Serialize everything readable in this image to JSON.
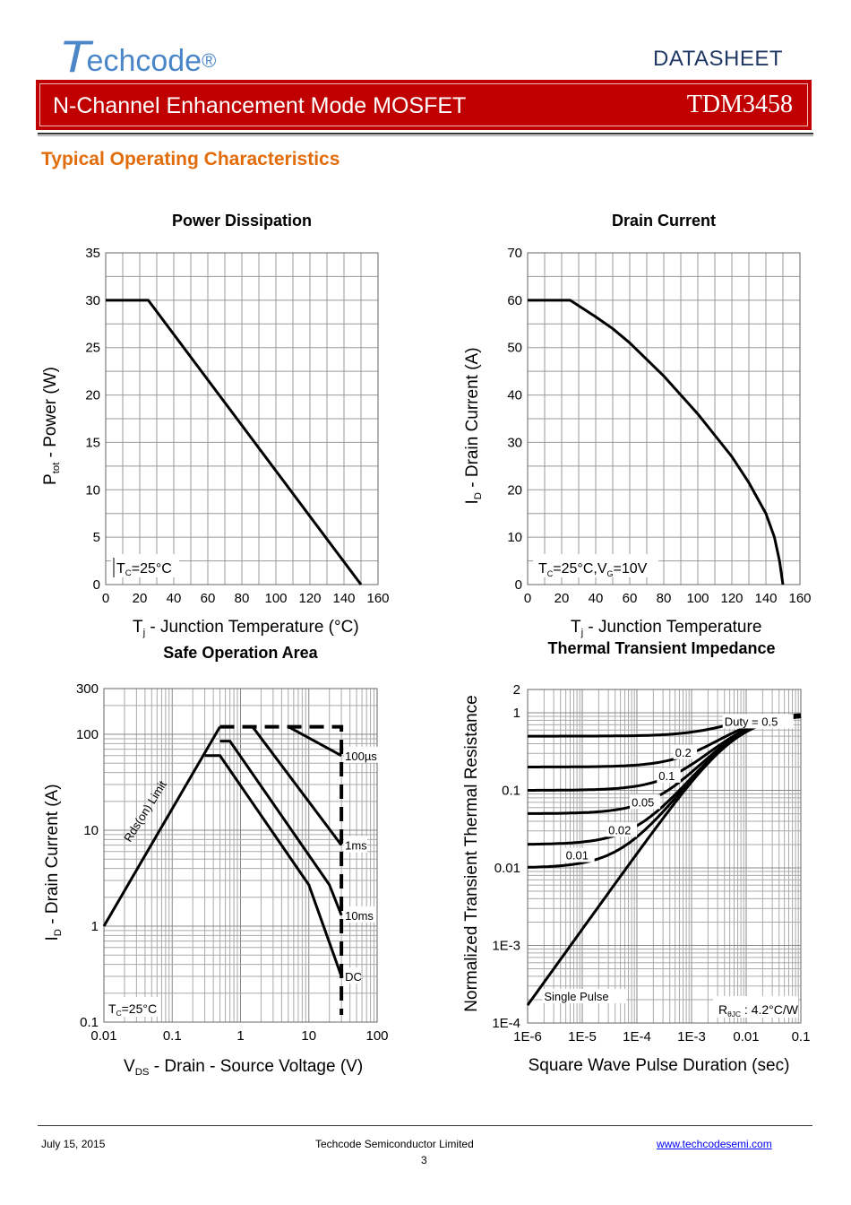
{
  "header": {
    "logo_initial": "T",
    "logo_rest": "echcode",
    "logo_reg": "®",
    "doc_type": "DATASHEET",
    "part_description": "N-Channel Enhancement Mode MOSFET",
    "part_number": "TDM3458",
    "brand_color": "#c00000",
    "logo_color": "#4a86c8"
  },
  "section_title": "Typical Operating Characteristics",
  "footer": {
    "date": "July 15, 2015",
    "company": "Techcode Semiconductor Limited",
    "page": "3",
    "url": "www.techcodesemi.com"
  },
  "chart_data": [
    {
      "id": "power",
      "type": "line",
      "title": "Power Dissipation",
      "xlabel_main": "T",
      "xlabel_sub": "j",
      "xlabel_rest": " - Junction Temperature (°C)",
      "ylabel_main": "P",
      "ylabel_sub": "tot",
      "ylabel_rest": " - Power (W)",
      "xlim": [
        0,
        160
      ],
      "ylim": [
        0,
        35
      ],
      "xticks": [
        0,
        20,
        40,
        60,
        80,
        100,
        120,
        140,
        160
      ],
      "yticks": [
        0,
        5,
        10,
        15,
        20,
        25,
        30,
        35
      ],
      "grid": true,
      "annotation": {
        "main": "T",
        "sub": "C",
        "rest": "=25°C"
      },
      "series": [
        {
          "name": "Ptot",
          "x": [
            0,
            25,
            150
          ],
          "y": [
            30,
            30,
            0
          ]
        }
      ]
    },
    {
      "id": "drain",
      "type": "line",
      "title": "Drain Current",
      "xlabel_main": "T",
      "xlabel_sub": "j",
      "xlabel_rest": " - Junction Temperature",
      "ylabel_main": "I",
      "ylabel_sub": "D",
      "ylabel_rest": " - Drain Current (A)",
      "xlim": [
        0,
        160
      ],
      "ylim": [
        0,
        70
      ],
      "xticks": [
        0,
        20,
        40,
        60,
        80,
        100,
        120,
        140,
        160
      ],
      "yticks": [
        0,
        10,
        20,
        30,
        40,
        50,
        60,
        70
      ],
      "grid": true,
      "annotation": {
        "text": "T_C=25°C,V_G=10V"
      },
      "series": [
        {
          "name": "ID",
          "x": [
            0,
            25,
            40,
            50,
            60,
            70,
            80,
            90,
            100,
            110,
            120,
            130,
            140,
            145,
            148,
            150
          ],
          "y": [
            60,
            60,
            56.5,
            54,
            51,
            47.5,
            44,
            40,
            36,
            31.5,
            27,
            21.5,
            15,
            10,
            5,
            0
          ]
        }
      ]
    },
    {
      "id": "soa",
      "type": "line",
      "title": "Safe Operation Area",
      "xscale": "log",
      "yscale": "log",
      "xlabel_main": "V",
      "xlabel_sub": "DS",
      "xlabel_rest": " - Drain - Source Voltage (V)",
      "ylabel_main": "I",
      "ylabel_sub": "D",
      "ylabel_rest": " - Drain Current (A)",
      "xlim": [
        0.01,
        100
      ],
      "ylim": [
        0.1,
        300
      ],
      "xticks": [
        "0.01",
        "0.1",
        "1",
        "10",
        "100"
      ],
      "yticks": [
        "0.1",
        "1",
        "10",
        "100",
        "300"
      ],
      "grid": true,
      "annotation": {
        "main": "T",
        "sub": "C",
        "rest": "=25°C"
      },
      "rds_label": "Rds(on) Limit",
      "series": [
        {
          "name": "Rds(on) Limit",
          "x": [
            0.01,
            0.5
          ],
          "y": [
            1,
            120
          ]
        },
        {
          "name": "100µs",
          "x": [
            5,
            30
          ],
          "y": [
            120,
            60
          ]
        },
        {
          "name": "1ms",
          "x": [
            1.5,
            30
          ],
          "y": [
            120,
            7
          ]
        },
        {
          "name": "10ms",
          "x": [
            0.5,
            0.7,
            20,
            30
          ],
          "y": [
            85,
            85,
            2.7,
            1.3
          ]
        },
        {
          "name": "DC",
          "x": [
            0.3,
            0.5,
            10,
            30
          ],
          "y": [
            60,
            60,
            2.7,
            0.3
          ]
        }
      ],
      "limit_current": 120,
      "limit_voltage": 30
    },
    {
      "id": "thermal",
      "type": "line",
      "title": "Thermal Transient Impedance",
      "xscale": "log",
      "yscale": "log",
      "xlabel": "Square Wave Pulse Duration (sec)",
      "ylabel": "Normalized Transient Thermal Resistance",
      "xlim": [
        1e-06,
        0.1
      ],
      "ylim": [
        0.0001,
        2
      ],
      "xticks": [
        "1E-6",
        "1E-5",
        "1E-4",
        "1E-3",
        "0.01",
        "0.1"
      ],
      "yticks": [
        "1E-4",
        "1E-3",
        "0.01",
        "0.1",
        "1",
        "2"
      ],
      "grid": true,
      "annotation": {
        "main": "R",
        "sub": "θJC",
        "rest": " : 4.2°C/W"
      },
      "series": [
        {
          "name": "Duty = 0.5",
          "label": "Duty = 0.5",
          "base": 0.5
        },
        {
          "name": "0.2",
          "label": "0.2",
          "base": 0.2
        },
        {
          "name": "0.1",
          "label": "0.1",
          "base": 0.1
        },
        {
          "name": "0.05",
          "label": "0.05",
          "base": 0.05
        },
        {
          "name": "0.02",
          "label": "0.02",
          "base": 0.02
        },
        {
          "name": "0.01",
          "label": "0.01",
          "base": 0.01
        },
        {
          "name": "Single Pulse",
          "label": "Single Pulse",
          "base": 0
        }
      ]
    }
  ]
}
